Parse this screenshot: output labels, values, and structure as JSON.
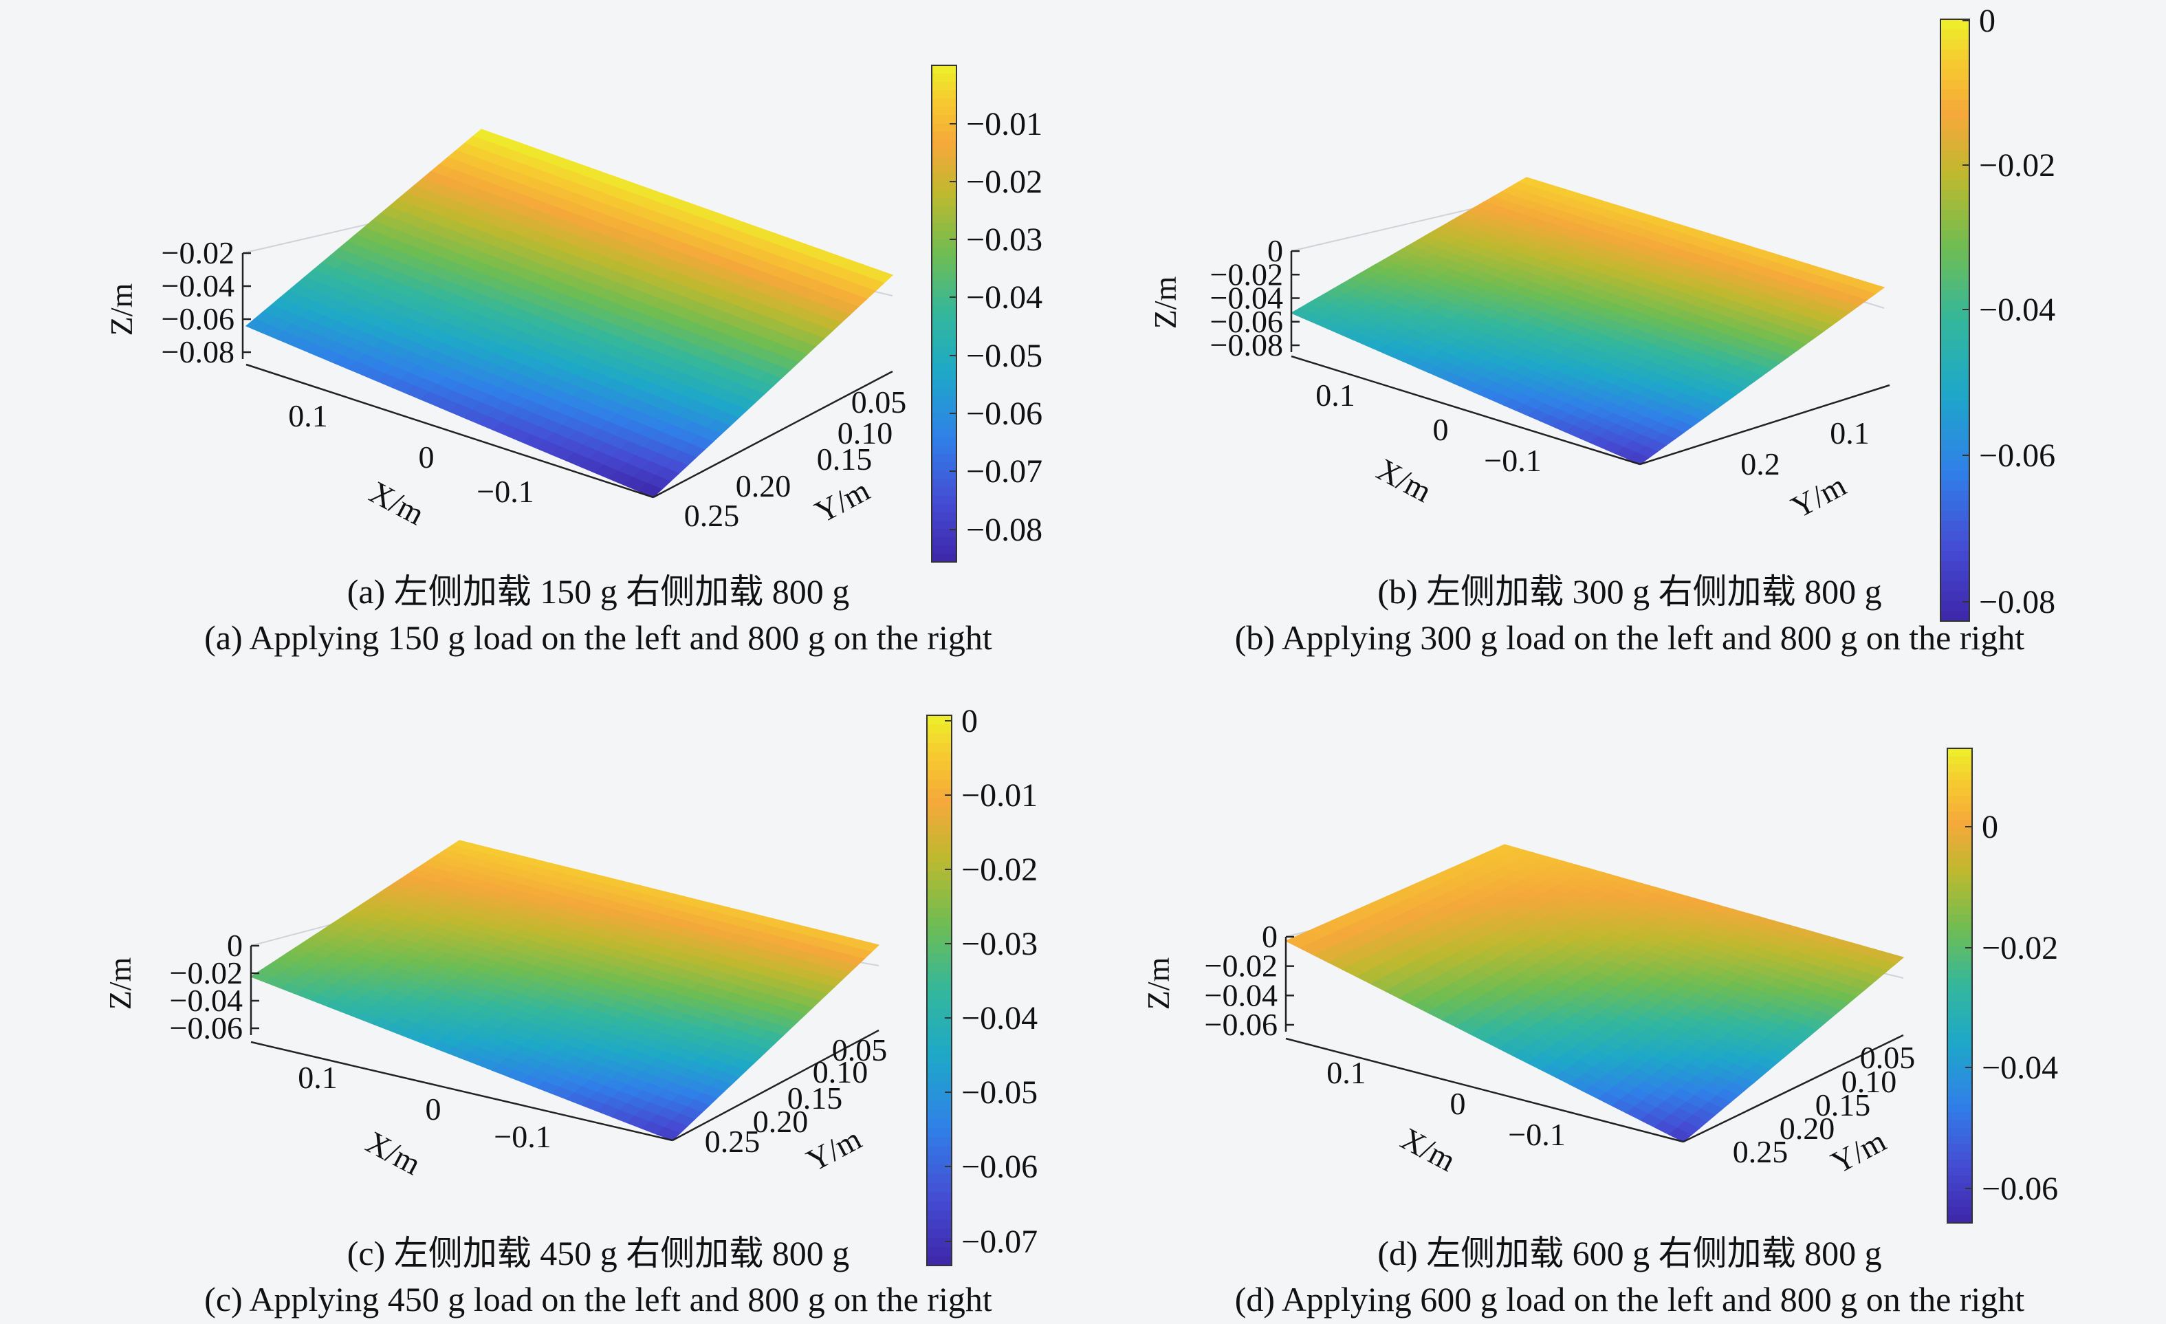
{
  "chart_data": [
    {
      "type": "surface",
      "title": "",
      "xlabel": "X/m",
      "ylabel": "Y/m",
      "zlabel": "Z/m",
      "x_ticks": [
        "0.1",
        "0",
        "−0.1"
      ],
      "y_ticks": [
        "0.05",
        "0.10",
        "0.15",
        "0.20",
        "0.25"
      ],
      "z_ticks": [
        "−0.02",
        "−0.04",
        "−0.06",
        "−0.08"
      ],
      "colorbar_ticks": [
        "−0.01",
        "−0.02",
        "−0.03",
        "−0.04",
        "−0.05",
        "−0.06",
        "−0.07",
        "−0.08"
      ],
      "colorbar_range": [
        -0.085,
        -0.003
      ],
      "corner_z": {
        "back": -0.003,
        "right": -0.005,
        "front": -0.085,
        "left": -0.06
      },
      "caption_cn": "(a) 左侧加载 150 g 右侧加载 800 g",
      "caption_en": "(a) Applying 150 g load on the left and 800 g on the right"
    },
    {
      "type": "surface",
      "title": "",
      "xlabel": "X/m",
      "ylabel": "Y/m",
      "zlabel": "Z/m",
      "x_ticks": [
        "0.1",
        "0",
        "−0.1"
      ],
      "y_ticks": [
        "0.1",
        "0.2"
      ],
      "z_ticks": [
        "0",
        "−0.02",
        "−0.04",
        "−0.06",
        "−0.08"
      ],
      "colorbar_ticks": [
        "0",
        "−0.02",
        "−0.04",
        "−0.06",
        "−0.08"
      ],
      "colorbar_range": [
        -0.085,
        0.0
      ],
      "corner_z": {
        "back": -0.005,
        "right": -0.008,
        "front": -0.08,
        "left": -0.045
      },
      "caption_cn": "(b) 左侧加载 300 g 右侧加载 800 g",
      "caption_en": "(b) Applying 300 g load on the left and 800 g on the right"
    },
    {
      "type": "surface",
      "title": "",
      "xlabel": "X/m",
      "ylabel": "Y/m",
      "zlabel": "Z/m",
      "x_ticks": [
        "0.1",
        "0",
        "−0.1"
      ],
      "y_ticks": [
        "0.05",
        "0.10",
        "0.15",
        "0.20",
        "0.25"
      ],
      "z_ticks": [
        "0",
        "−0.02",
        "−0.04",
        "−0.06"
      ],
      "colorbar_ticks": [
        "0",
        "−0.01",
        "−0.02",
        "−0.03",
        "−0.04",
        "−0.05",
        "−0.06",
        "−0.07"
      ],
      "colorbar_range": [
        -0.075,
        0.003
      ],
      "corner_z": {
        "back": -0.002,
        "right": -0.004,
        "front": -0.07,
        "left": -0.03
      },
      "caption_cn": "(c) 左侧加载 450 g 右侧加载 800 g",
      "caption_en": "(c) Applying 450 g load on the left and 800 g on the right"
    },
    {
      "type": "surface",
      "title": "",
      "xlabel": "X/m",
      "ylabel": "Y/m",
      "zlabel": "Z/m",
      "x_ticks": [
        "0.1",
        "0",
        "−0.1"
      ],
      "y_ticks": [
        "0.05",
        "0.10",
        "0.15",
        "0.20",
        "0.25"
      ],
      "z_ticks": [
        "0",
        "−0.02",
        "−0.04",
        "−0.06"
      ],
      "colorbar_ticks": [
        "0",
        "−0.02",
        "−0.04",
        "−0.06"
      ],
      "colorbar_range": [
        -0.065,
        0.012
      ],
      "corner_z": {
        "back": 0.005,
        "right": -0.005,
        "front": -0.06,
        "left": 0.002
      },
      "caption_cn": "(d) 左侧加载 600 g 右侧加载 800 g",
      "caption_en": "(d) Applying 600 g load on the left and 800 g on the right"
    }
  ]
}
